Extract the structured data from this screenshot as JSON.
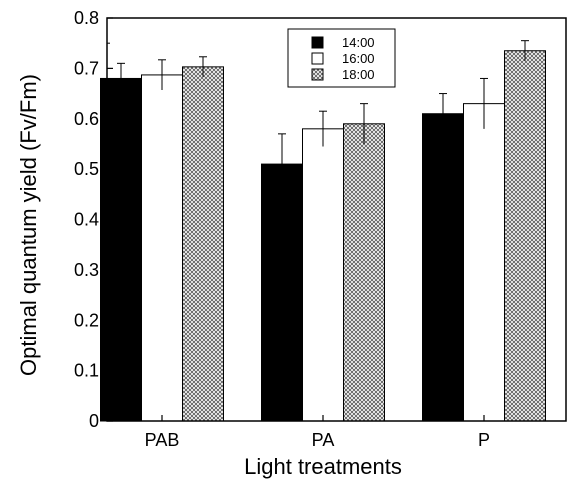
{
  "chart_data": {
    "type": "bar",
    "categories": [
      "PAB",
      "PA",
      "P"
    ],
    "series": [
      {
        "name": "14:00",
        "values": [
          0.68,
          0.51,
          0.61
        ],
        "errors": [
          0.03,
          0.06,
          0.04
        ],
        "fill": "#000000"
      },
      {
        "name": "16:00",
        "values": [
          0.687,
          0.58,
          0.63
        ],
        "errors": [
          0.03,
          0.035,
          0.05
        ],
        "fill": "#ffffff"
      },
      {
        "name": "18:00",
        "values": [
          0.703,
          0.59,
          0.735
        ],
        "errors": [
          0.02,
          0.04,
          0.02
        ],
        "fill": "crosshatch"
      }
    ],
    "xlabel": "Light treatments",
    "ylabel": "Optimal quantum yield (Fv/Fm)",
    "ylim": [
      0,
      0.8
    ],
    "yticks": [
      "0",
      "0.1",
      "0.2",
      "0.3",
      "0.4",
      "0.5",
      "0.6",
      "0.7",
      "0.8"
    ],
    "grid": false,
    "legend_position": "top-center"
  }
}
